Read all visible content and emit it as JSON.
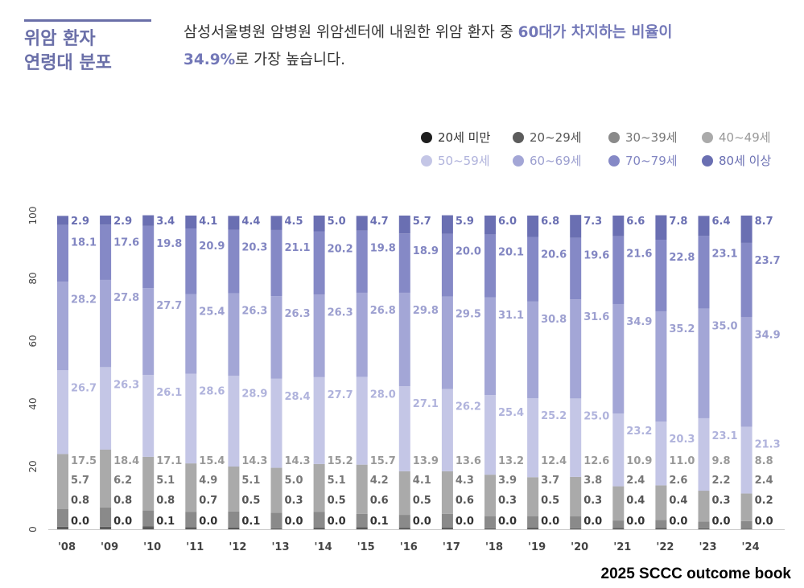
{
  "header": {
    "title_lines": [
      "위암 환자",
      "연령대 분포"
    ],
    "headline_part1": "삼성서울병원 암병원 위암센터에 내원한 위암 환자 중 ",
    "headline_highlight1": "60대가 차지하는 비율이",
    "headline_highlight2": "34.9%",
    "headline_part2": "로 가장 높습니다."
  },
  "footer": {
    "source": "2025 SCCC outcome book"
  },
  "chart_data": {
    "type": "bar",
    "stacked": true,
    "orientation": "vertical",
    "categories": [
      "'08",
      "'09",
      "'10",
      "'11",
      "'12",
      "'13",
      "'14",
      "'15",
      "'16",
      "'17",
      "'18",
      "'19",
      "'20",
      "'21",
      "'22",
      "'23",
      "'24"
    ],
    "ylim": [
      0,
      100
    ],
    "yticks": [
      "0",
      "20",
      "40",
      "60",
      "80",
      "100"
    ],
    "series": [
      {
        "name": "20세 미만",
        "color": "#1e1e1e",
        "label_color": "#333333",
        "values": [
          0.0,
          0.0,
          0.1,
          0.0,
          0.1,
          0.0,
          0.0,
          0.1,
          0.0,
          0.0,
          0.0,
          0.0,
          0.0,
          0.0,
          0.0,
          0.0,
          0.0
        ]
      },
      {
        "name": "20~29세",
        "color": "#5c5c5c",
        "label_color": "#555555",
        "values": [
          0.8,
          0.8,
          0.8,
          0.7,
          0.5,
          0.3,
          0.5,
          0.6,
          0.5,
          0.6,
          0.3,
          0.5,
          0.3,
          0.4,
          0.4,
          0.3,
          0.2
        ]
      },
      {
        "name": "30~39세",
        "color": "#8a8a8a",
        "label_color": "#777777",
        "values": [
          5.7,
          6.2,
          5.1,
          4.9,
          5.1,
          5.0,
          5.1,
          4.2,
          4.1,
          4.3,
          3.9,
          3.7,
          3.8,
          2.4,
          2.6,
          2.2,
          2.4
        ]
      },
      {
        "name": "40~49세",
        "color": "#aaaaaa",
        "label_color": "#999999",
        "values": [
          17.5,
          18.4,
          17.1,
          15.4,
          14.3,
          14.3,
          15.2,
          15.7,
          13.9,
          13.6,
          13.2,
          12.4,
          12.6,
          10.9,
          11.0,
          9.8,
          8.8
        ]
      },
      {
        "name": "50~59세",
        "color": "#c4c6e6",
        "label_color": "#b0b3dc",
        "values": [
          26.7,
          26.3,
          26.1,
          28.6,
          28.9,
          28.4,
          27.7,
          28.0,
          27.1,
          26.2,
          25.4,
          25.2,
          25.0,
          23.2,
          20.3,
          23.1,
          21.3
        ]
      },
      {
        "name": "60~69세",
        "color": "#a3a6d6",
        "label_color": "#9da0d0",
        "values": [
          28.2,
          27.8,
          27.7,
          25.4,
          26.3,
          26.3,
          26.3,
          26.8,
          29.8,
          29.5,
          31.1,
          30.8,
          31.6,
          34.9,
          35.2,
          35.0,
          34.9
        ]
      },
      {
        "name": "70~79세",
        "color": "#8589c6",
        "label_color": "#8286c2",
        "values": [
          18.1,
          17.6,
          19.8,
          20.9,
          20.3,
          21.1,
          20.2,
          19.8,
          18.9,
          20.0,
          20.1,
          20.6,
          19.6,
          21.6,
          22.8,
          23.1,
          23.7
        ]
      },
      {
        "name": "80세 이상",
        "color": "#6a6fb2",
        "label_color": "#6a6fb2",
        "values": [
          2.9,
          2.9,
          3.4,
          4.1,
          4.4,
          4.5,
          5.0,
          4.7,
          5.7,
          5.9,
          6.0,
          6.8,
          7.3,
          6.6,
          7.8,
          6.4,
          8.7
        ]
      }
    ],
    "legend_placement": "top-right",
    "grid": false
  }
}
